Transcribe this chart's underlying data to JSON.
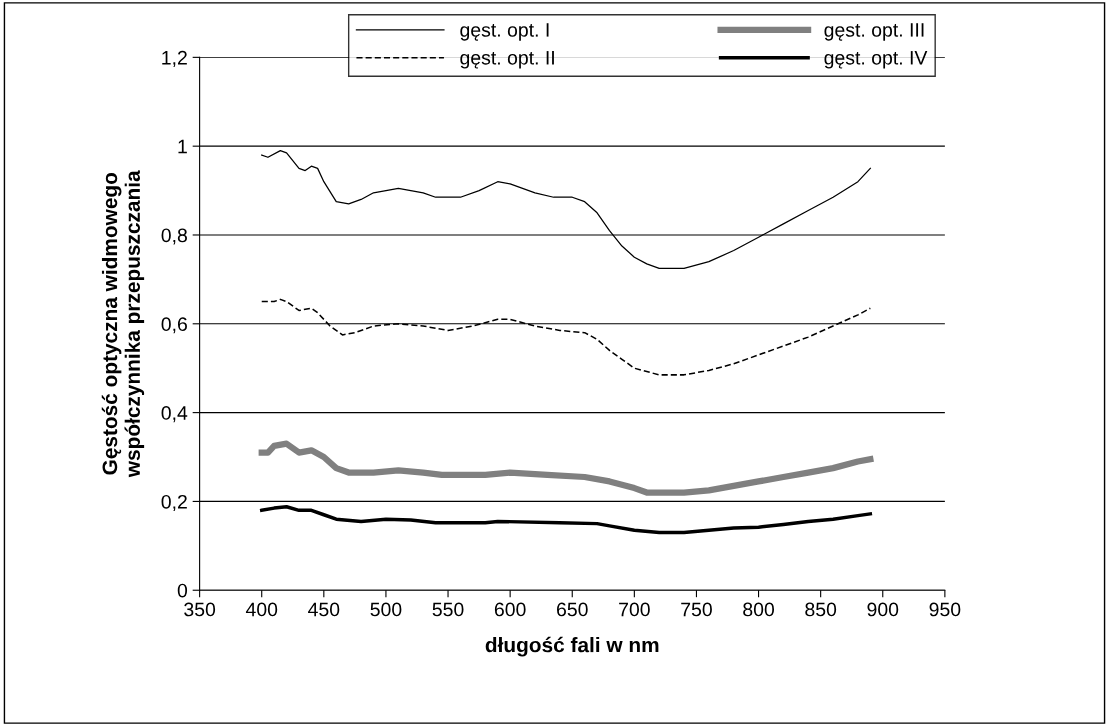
{
  "chart_data": {
    "type": "line",
    "xlabel": "długość fali w nm",
    "ylabel": "Gęstość optyczna widmowego\nwspółczynnika przepuszczania",
    "xlim": [
      350,
      950
    ],
    "xticks": [
      350,
      400,
      450,
      500,
      550,
      600,
      650,
      700,
      750,
      800,
      850,
      900,
      950
    ],
    "ylim": [
      0,
      1.2
    ],
    "yticks": [
      0,
      {
        "value": 0.2,
        "label": "0,2"
      },
      {
        "value": 0.4,
        "label": "0,4"
      },
      {
        "value": 0.6,
        "label": "0,6"
      },
      {
        "value": 0.8,
        "label": "0,8"
      },
      1,
      {
        "value": 1.2,
        "label": "1,2"
      }
    ],
    "grid": "y",
    "legend": "top right",
    "series": [
      {
        "name": "gęst. opt. I",
        "color": "#000000",
        "line_style": "solid",
        "x": [
          400,
          405,
          415,
          420,
          430,
          435,
          440,
          445,
          450,
          460,
          470,
          480,
          490,
          510,
          530,
          540,
          560,
          575,
          590,
          600,
          620,
          635,
          650,
          660,
          670,
          680,
          690,
          700,
          710,
          720,
          740,
          760,
          780,
          800,
          820,
          840,
          860,
          880,
          890
        ],
        "values": [
          0.98,
          0.975,
          0.99,
          0.985,
          0.95,
          0.945,
          0.955,
          0.95,
          0.92,
          0.875,
          0.87,
          0.88,
          0.895,
          0.905,
          0.895,
          0.885,
          0.885,
          0.9,
          0.92,
          0.915,
          0.895,
          0.885,
          0.885,
          0.875,
          0.85,
          0.81,
          0.775,
          0.75,
          0.735,
          0.725,
          0.725,
          0.74,
          0.765,
          0.795,
          0.825,
          0.855,
          0.885,
          0.92,
          0.95
        ]
      },
      {
        "name": "gęst. opt. II",
        "color": "#000000",
        "line_style": "dashed",
        "x": [
          400,
          410,
          415,
          420,
          430,
          440,
          445,
          455,
          465,
          475,
          490,
          510,
          530,
          550,
          570,
          590,
          600,
          620,
          640,
          660,
          670,
          680,
          690,
          700,
          720,
          740,
          760,
          780,
          800,
          820,
          840,
          860,
          880,
          890
        ],
        "values": [
          0.65,
          0.65,
          0.655,
          0.65,
          0.63,
          0.635,
          0.625,
          0.595,
          0.575,
          0.58,
          0.595,
          0.6,
          0.595,
          0.585,
          0.595,
          0.61,
          0.61,
          0.595,
          0.585,
          0.58,
          0.565,
          0.54,
          0.52,
          0.5,
          0.485,
          0.485,
          0.495,
          0.51,
          0.53,
          0.55,
          0.57,
          0.595,
          0.62,
          0.635
        ]
      },
      {
        "name": "gęst. opt. III",
        "color": "#808080",
        "line_style": "solid",
        "x": [
          400,
          405,
          410,
          420,
          430,
          440,
          450,
          460,
          470,
          490,
          510,
          530,
          545,
          580,
          600,
          630,
          660,
          680,
          700,
          710,
          740,
          760,
          780,
          800,
          820,
          840,
          860,
          880,
          890
        ],
        "values": [
          0.31,
          0.31,
          0.325,
          0.33,
          0.31,
          0.315,
          0.3,
          0.275,
          0.265,
          0.265,
          0.27,
          0.265,
          0.26,
          0.26,
          0.265,
          0.26,
          0.255,
          0.245,
          0.23,
          0.22,
          0.22,
          0.225,
          0.235,
          0.245,
          0.255,
          0.265,
          0.275,
          0.29,
          0.295
        ]
      },
      {
        "name": "gęst. opt. IV",
        "color": "#000000",
        "line_style": "solid",
        "x": [
          400,
          410,
          420,
          430,
          440,
          450,
          460,
          480,
          500,
          520,
          540,
          580,
          590,
          640,
          670,
          680,
          700,
          720,
          740,
          760,
          780,
          800,
          820,
          840,
          860,
          880,
          890
        ],
        "values": [
          0.18,
          0.185,
          0.188,
          0.18,
          0.18,
          0.17,
          0.16,
          0.155,
          0.16,
          0.158,
          0.152,
          0.152,
          0.155,
          0.152,
          0.15,
          0.145,
          0.135,
          0.13,
          0.13,
          0.135,
          0.14,
          0.142,
          0.148,
          0.155,
          0.16,
          0.168,
          0.172
        ]
      }
    ]
  }
}
